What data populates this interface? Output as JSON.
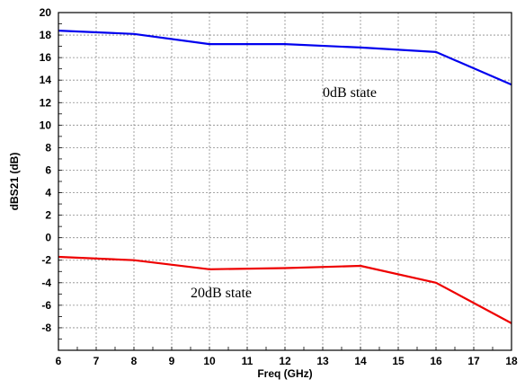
{
  "chart_data": {
    "type": "line",
    "xlabel": "Freq (GHz)",
    "ylabel": "dBS21 (dB)",
    "xlim": [
      6,
      18
    ],
    "ylim": [
      -10,
      20
    ],
    "x_ticks": [
      6,
      7,
      8,
      9,
      10,
      11,
      12,
      13,
      14,
      15,
      16,
      17,
      18
    ],
    "y_ticks": [
      -8,
      -6,
      -4,
      -2,
      0,
      2,
      4,
      6,
      8,
      10,
      12,
      14,
      16,
      18,
      20
    ],
    "x_tick_labels": [
      "6",
      "7",
      "8",
      "9",
      "10",
      "11",
      "12",
      "13",
      "14",
      "15",
      "16",
      "17",
      "18"
    ],
    "y_tick_labels": [
      "-8",
      "-6",
      "-4",
      "-2",
      "0",
      "2",
      "4",
      "6",
      "8",
      "10",
      "12",
      "14",
      "16",
      "18",
      "20"
    ],
    "grid": true,
    "grid_style": "dotted",
    "series": [
      {
        "label": "0dB state",
        "color": "#0000ee",
        "x": [
          6,
          8,
          10,
          12,
          14,
          16,
          18
        ],
        "y": [
          18.4,
          18.1,
          17.2,
          17.2,
          16.9,
          16.5,
          13.6
        ]
      },
      {
        "label": "20dB state",
        "color": "#ee0000",
        "x": [
          6,
          8,
          10,
          12,
          14,
          16,
          18
        ],
        "y": [
          -1.7,
          -2.0,
          -2.8,
          -2.7,
          -2.5,
          -4.0,
          -7.6
        ]
      }
    ],
    "annotations": [
      {
        "text": "0dB state",
        "series": 0
      },
      {
        "text": "20dB state",
        "series": 1
      }
    ]
  }
}
